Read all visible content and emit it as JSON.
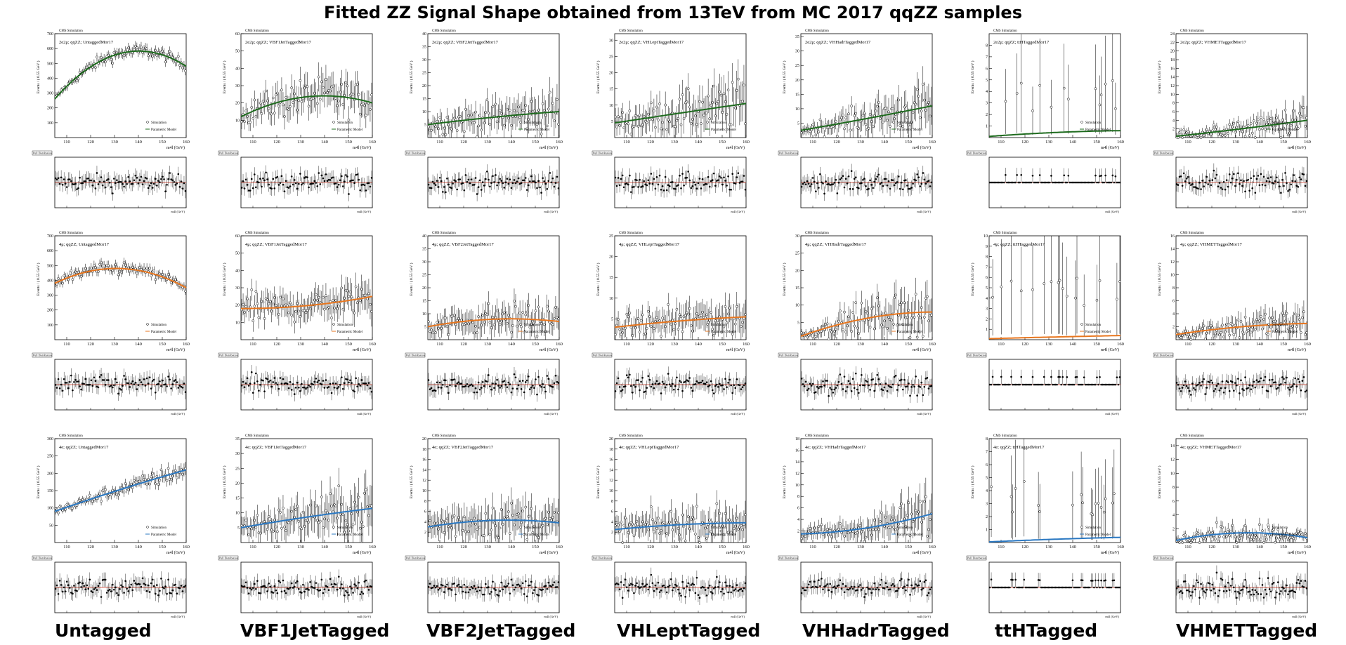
{
  "title": "Fitted ZZ Signal Shape obtained from 13TeV from MC 2017 qqZZ samples",
  "categories": [
    "Untagged",
    "VBF1JetTagged",
    "VBF2JetTagged",
    "VHLeptTagged",
    "VHHadrTagged",
    "ttHTagged",
    "VHMETTagged"
  ],
  "common": {
    "cms_label": "CMS Simulation",
    "xlabel": "m4l (GeV)",
    "ylabel": "Events / ( 0.55 GeV )",
    "legend_sim": "Simulation",
    "legend_model": "Parametric Model",
    "pull_label": "Pull Distribution",
    "xlim": [
      105,
      160
    ],
    "xticks": [
      110,
      120,
      130,
      140,
      150,
      160
    ]
  },
  "colors": {
    "2e2mu": "#1e6b1e",
    "4mu": "#e8761e",
    "4e": "#2a78c2",
    "pull_line": "#d0301c"
  },
  "chart_data": [
    {
      "type": "scatter",
      "channel": "2e2mu",
      "category": "Untagged",
      "title": "2e2μ; qqZZ; UntaggedMor17",
      "ylim": [
        0,
        700
      ],
      "yticks": [
        100,
        200,
        300,
        400,
        500,
        600,
        700
      ],
      "model_y": [
        260,
        580,
        480
      ],
      "model_peak_x": 137,
      "noise_rel": 0.07,
      "err_rel": 0.06
    },
    {
      "type": "scatter",
      "channel": "2e2mu",
      "category": "VBF1JetTagged",
      "title": "2e2μ; qqZZ; VBF1JetTaggedMor17",
      "ylim": [
        0,
        60
      ],
      "yticks": [
        10,
        20,
        30,
        40,
        50,
        60
      ],
      "model_y": [
        12,
        24,
        20
      ],
      "model_peak_x": 137,
      "noise_rel": 0.45,
      "err_rel": 0.35
    },
    {
      "type": "scatter",
      "channel": "2e2mu",
      "category": "VBF2JetTagged",
      "title": "2e2μ; qqZZ; VBF2JetTaggedMor17",
      "ylim": [
        0,
        40
      ],
      "yticks": [
        5,
        10,
        15,
        20,
        25,
        30,
        35,
        40
      ],
      "model_y": [
        5,
        8.5,
        10
      ],
      "model_peak_x": 140,
      "noise_rel": 0.75,
      "err_rel": 0.6
    },
    {
      "type": "scatter",
      "channel": "2e2mu",
      "category": "VHLeptTagged",
      "title": "2e2μ; qqZZ; VHLeptTaggedMor17",
      "ylim": [
        0,
        32
      ],
      "yticks": [
        5,
        10,
        15,
        20,
        25,
        30
      ],
      "model_y": [
        4.5,
        7.5,
        10.5
      ],
      "model_peak_x": 132,
      "noise_rel": 0.75,
      "err_rel": 0.6
    },
    {
      "type": "scatter",
      "channel": "2e2mu",
      "category": "VHHadrTagged",
      "title": "2e2μ; qqZZ; VHHadrTaggedMor17",
      "ylim": [
        0,
        36
      ],
      "yticks": [
        5,
        10,
        15,
        20,
        25,
        30,
        35
      ],
      "model_y": [
        2.5,
        6.5,
        11
      ],
      "model_peak_x": 132,
      "noise_rel": 0.75,
      "err_rel": 0.6
    },
    {
      "type": "scatter",
      "channel": "2e2mu",
      "category": "ttHTagged",
      "title": "2e2μ; qqZZ; ttHTaggedMor17",
      "ylim": [
        0,
        9
      ],
      "yticks": [
        1,
        2,
        3,
        4,
        5,
        6,
        7,
        8
      ],
      "model_y": [
        0.1,
        0.5,
        0.6
      ],
      "model_peak_x": 140,
      "noise_rel": 1.5,
      "err_rel": 0.8,
      "sparse": true
    },
    {
      "type": "scatter",
      "channel": "2e2mu",
      "category": "VHMETTagged",
      "title": "2e2μ; qqZZ; VHMETTaggedMor17",
      "ylim": [
        0,
        24
      ],
      "yticks": [
        2,
        4,
        6,
        8,
        10,
        12,
        14,
        16,
        18,
        20,
        22,
        24
      ],
      "model_y": [
        0.3,
        2.2,
        4
      ],
      "model_peak_x": 135,
      "noise_rel": 1.0,
      "err_rel": 0.7
    },
    {
      "type": "scatter",
      "channel": "4mu",
      "category": "Untagged",
      "title": "4μ; qqZZ; UntaggedMor17",
      "ylim": [
        0,
        700
      ],
      "yticks": [
        100,
        200,
        300,
        400,
        500,
        600,
        700
      ],
      "model_y": [
        380,
        480,
        350
      ],
      "model_peak_x": 130,
      "noise_rel": 0.09,
      "err_rel": 0.07
    },
    {
      "type": "scatter",
      "channel": "4mu",
      "category": "VBF1JetTagged",
      "title": "4μ; qqZZ; VBF1JetTaggedMor17",
      "ylim": [
        0,
        60
      ],
      "yticks": [
        10,
        20,
        30,
        40,
        50,
        60
      ],
      "model_y": [
        18,
        20,
        25
      ],
      "model_peak_x": 135,
      "noise_rel": 0.45,
      "err_rel": 0.35
    },
    {
      "type": "scatter",
      "channel": "4mu",
      "category": "VBF2JetTagged",
      "title": "4μ; qqZZ; VBF2JetTaggedMor17",
      "ylim": [
        0,
        40
      ],
      "yticks": [
        5,
        10,
        15,
        20,
        25,
        30,
        35,
        40
      ],
      "model_y": [
        5,
        8,
        7
      ],
      "model_peak_x": 137,
      "noise_rel": 0.75,
      "err_rel": 0.6
    },
    {
      "type": "scatter",
      "channel": "4mu",
      "category": "VHLeptTagged",
      "title": "4μ; qqZZ; VHLeptTaggedMor17",
      "ylim": [
        0,
        25
      ],
      "yticks": [
        5,
        10,
        15,
        20,
        25
      ],
      "model_y": [
        3,
        4.5,
        5.5
      ],
      "model_peak_x": 132,
      "noise_rel": 0.8,
      "err_rel": 0.65
    },
    {
      "type": "scatter",
      "channel": "4mu",
      "category": "VHHadrTagged",
      "title": "4μ; qqZZ; VHHadrTaggedMor17",
      "ylim": [
        0,
        30
      ],
      "yticks": [
        5,
        10,
        15,
        20,
        25,
        30
      ],
      "model_y": [
        1,
        7,
        8
      ],
      "model_peak_x": 140,
      "noise_rel": 0.75,
      "err_rel": 0.6
    },
    {
      "type": "scatter",
      "channel": "4mu",
      "category": "ttHTagged",
      "title": "4μ; qqZZ; ttHTaggedMor17",
      "ylim": [
        0,
        10
      ],
      "yticks": [
        1,
        2,
        3,
        4,
        5,
        6,
        7,
        8,
        9,
        10
      ],
      "model_y": [
        0.1,
        0.3,
        0.4
      ],
      "model_peak_x": 140,
      "noise_rel": 1.5,
      "err_rel": 0.8,
      "sparse": true
    },
    {
      "type": "scatter",
      "channel": "4mu",
      "category": "VHMETTagged",
      "title": "4μ; qqZZ; VHMETTaggedMor17",
      "ylim": [
        0,
        16
      ],
      "yticks": [
        2,
        4,
        6,
        8,
        10,
        12,
        14,
        16
      ],
      "model_y": [
        0.8,
        2.2,
        2.5
      ],
      "model_peak_x": 140,
      "noise_rel": 1.0,
      "err_rel": 0.7
    },
    {
      "type": "scatter",
      "channel": "4e",
      "category": "Untagged",
      "title": "4e; qqZZ; UntaggedMor17",
      "ylim": [
        0,
        300
      ],
      "yticks": [
        50,
        100,
        150,
        200,
        250,
        300
      ],
      "model_y": [
        90,
        190,
        210
      ],
      "model_peak_x": 150,
      "noise_rel": 0.12,
      "err_rel": 0.09
    },
    {
      "type": "scatter",
      "channel": "4e",
      "category": "VBF1JetTagged",
      "title": "4e; qqZZ; VBF1JetTaggedMor17",
      "ylim": [
        0,
        35
      ],
      "yticks": [
        5,
        10,
        15,
        20,
        25,
        30,
        35
      ],
      "model_y": [
        5,
        8.5,
        11.5
      ],
      "model_peak_x": 132,
      "noise_rel": 0.7,
      "err_rel": 0.6
    },
    {
      "type": "scatter",
      "channel": "4e",
      "category": "VBF2JetTagged",
      "title": "4e; qqZZ; VBF2JetTaggedMor17",
      "ylim": [
        0,
        20
      ],
      "yticks": [
        2,
        4,
        6,
        8,
        10,
        12,
        14,
        16,
        18,
        20
      ],
      "model_y": [
        3,
        4.3,
        3.8
      ],
      "model_peak_x": 135,
      "noise_rel": 0.8,
      "err_rel": 0.7
    },
    {
      "type": "scatter",
      "channel": "4e",
      "category": "VHLeptTagged",
      "title": "4e; qqZZ; VHLeptTaggedMor17",
      "ylim": [
        0,
        20
      ],
      "yticks": [
        2,
        4,
        6,
        8,
        10,
        12,
        14,
        16,
        18,
        20
      ],
      "model_y": [
        2.5,
        3.5,
        3.8
      ],
      "model_peak_x": 135,
      "noise_rel": 0.85,
      "err_rel": 0.7
    },
    {
      "type": "scatter",
      "channel": "4e",
      "category": "VHHadrTagged",
      "title": "4e; qqZZ; VHHadrTaggedMor17",
      "ylim": [
        0,
        18
      ],
      "yticks": [
        2,
        4,
        6,
        8,
        10,
        12,
        14,
        16,
        18
      ],
      "model_y": [
        1.5,
        2.5,
        5
      ],
      "model_peak_x": 132,
      "noise_rel": 0.85,
      "err_rel": 0.7
    },
    {
      "type": "scatter",
      "channel": "4e",
      "category": "ttHTagged",
      "title": "4e; qqZZ; ttHTaggedMor17",
      "ylim": [
        0,
        8
      ],
      "yticks": [
        1,
        2,
        3,
        4,
        5,
        6,
        7,
        8
      ],
      "model_y": [
        0.05,
        0.3,
        0.4
      ],
      "model_peak_x": 140,
      "noise_rel": 1.5,
      "err_rel": 0.8,
      "sparse": true
    },
    {
      "type": "scatter",
      "channel": "4e",
      "category": "VHMETTagged",
      "title": "4e; qqZZ; VHMETTaggedMor17",
      "ylim": [
        0,
        15
      ],
      "yticks": [
        2,
        4,
        6,
        8,
        10,
        12,
        14
      ],
      "model_y": [
        0.3,
        1.3,
        0.7
      ],
      "model_peak_x": 145,
      "noise_rel": 1.0,
      "err_rel": 0.7
    }
  ]
}
